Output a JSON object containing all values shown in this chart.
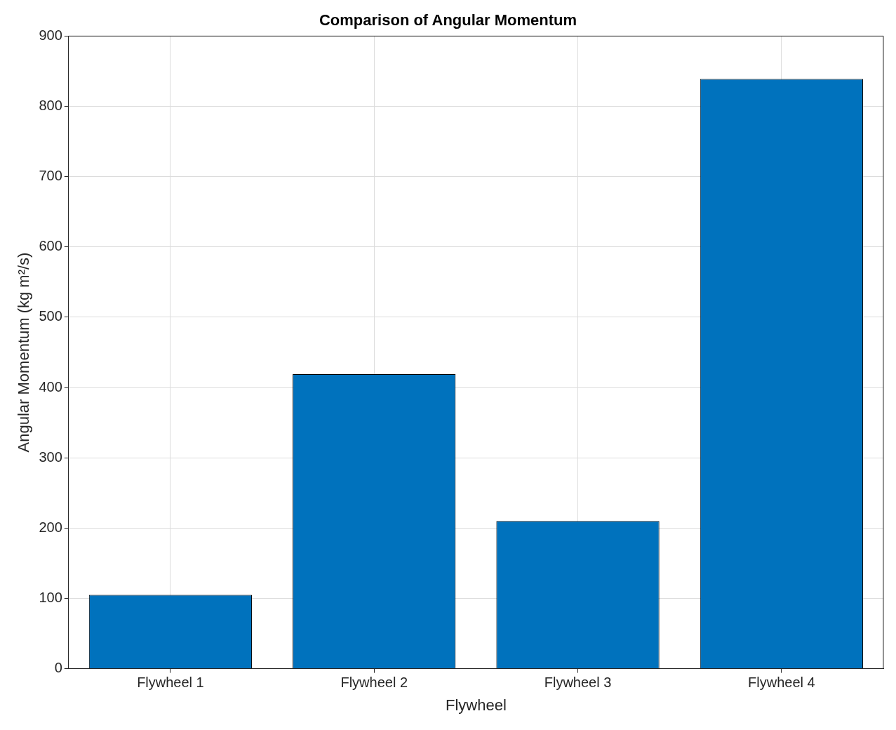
{
  "chart_data": {
    "type": "bar",
    "title": "Comparison of Angular Momentum",
    "xlabel": "Flywheel",
    "ylabel": "Angular Momentum (kg m²/s)",
    "categories": [
      "Flywheel 1",
      "Flywheel 2",
      "Flywheel 3",
      "Flywheel 4"
    ],
    "values": [
      105,
      419,
      210,
      839
    ],
    "color": "#0072bd",
    "ylim": [
      0,
      900
    ],
    "yticks": [
      0,
      100,
      200,
      300,
      400,
      500,
      600,
      700,
      800,
      900
    ],
    "grid": true
  }
}
